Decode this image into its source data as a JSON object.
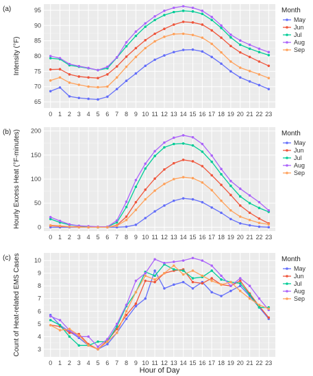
{
  "figure": {
    "xlabel": "Hour of Day"
  },
  "chart_data": [
    {
      "type": "line",
      "panel_label": "(a)",
      "title": "",
      "xlabel": "",
      "ylabel": "Intensity (°F)",
      "ylim": [
        63,
        97
      ],
      "yticks": [
        65,
        70,
        75,
        80,
        85,
        90,
        95
      ],
      "x": [
        0,
        1,
        2,
        3,
        4,
        5,
        6,
        7,
        8,
        9,
        10,
        11,
        12,
        13,
        14,
        15,
        16,
        17,
        18,
        19,
        20,
        21,
        22,
        23
      ],
      "legend_title": "Month",
      "legend_position": "right",
      "grid": true,
      "series": [
        {
          "name": "May",
          "color": "#636efa",
          "values": [
            68.5,
            69.7,
            66.8,
            66.3,
            66.0,
            65.8,
            66.7,
            69.2,
            71.9,
            74.3,
            76.8,
            78.8,
            80.2,
            81.3,
            82.0,
            82.1,
            81.5,
            79.7,
            77.5,
            75.0,
            73.0,
            71.7,
            70.5,
            69.2
          ]
        },
        {
          "name": "Jun",
          "color": "#ef553b",
          "values": [
            75.6,
            75.7,
            74.0,
            73.3,
            73.0,
            72.8,
            74.0,
            76.6,
            79.8,
            82.6,
            85.2,
            87.3,
            88.9,
            90.3,
            91.2,
            91.0,
            90.3,
            88.4,
            86.0,
            83.3,
            81.2,
            79.7,
            78.2,
            76.8
          ]
        },
        {
          "name": "Jul",
          "color": "#00cc96",
          "values": [
            79.3,
            79.0,
            77.0,
            76.5,
            76.0,
            75.4,
            76.0,
            79.5,
            83.2,
            86.6,
            89.6,
            91.8,
            93.4,
            94.4,
            94.8,
            94.6,
            93.8,
            91.8,
            89.2,
            86.1,
            83.7,
            82.4,
            81.3,
            80.3
          ]
        },
        {
          "name": "Aug",
          "color": "#ab63fa",
          "values": [
            80.0,
            79.3,
            77.4,
            76.7,
            76.1,
            75.4,
            76.5,
            79.6,
            84.5,
            88.0,
            90.7,
            93.0,
            94.8,
            95.8,
            96.3,
            95.8,
            94.8,
            92.8,
            90.0,
            87.0,
            85.1,
            83.7,
            82.4,
            81.3
          ]
        },
        {
          "name": "Sep",
          "color": "#ffa15a",
          "values": [
            72.0,
            73.0,
            71.3,
            70.6,
            70.0,
            69.8,
            70.0,
            73.0,
            76.5,
            79.7,
            82.6,
            84.8,
            86.3,
            87.2,
            87.3,
            86.9,
            86.0,
            84.0,
            81.2,
            78.2,
            76.2,
            75.1,
            74.0,
            72.8
          ]
        }
      ]
    },
    {
      "type": "line",
      "panel_label": "(b)",
      "title": "",
      "xlabel": "",
      "ylabel": "Hourly Excess Heat (°F-minutes)",
      "ylim": [
        -8,
        208
      ],
      "yticks": [
        0,
        50,
        100,
        150,
        200
      ],
      "x": [
        0,
        1,
        2,
        3,
        4,
        5,
        6,
        7,
        8,
        9,
        10,
        11,
        12,
        13,
        14,
        15,
        16,
        17,
        18,
        19,
        20,
        21,
        22,
        23
      ],
      "legend_title": "Month",
      "legend_position": "right",
      "grid": true,
      "series": [
        {
          "name": "May",
          "color": "#636efa",
          "values": [
            0,
            0,
            0,
            0,
            0,
            0,
            0,
            0,
            1,
            5,
            19,
            33,
            45,
            55,
            60,
            58,
            52,
            41,
            30,
            17,
            8,
            4,
            1,
            0
          ]
        },
        {
          "name": "Jun",
          "color": "#ef553b",
          "values": [
            3,
            2,
            1,
            1,
            0,
            0,
            0,
            4,
            22,
            52,
            78,
            101,
            120,
            133,
            140,
            137,
            127,
            108,
            88,
            67,
            45,
            30,
            18,
            8
          ]
        },
        {
          "name": "Jul",
          "color": "#00cc96",
          "values": [
            17,
            10,
            5,
            3,
            1,
            0,
            1,
            10,
            42,
            84,
            122,
            148,
            166,
            173,
            174,
            170,
            157,
            136,
            110,
            86,
            64,
            50,
            40,
            32
          ]
        },
        {
          "name": "Aug",
          "color": "#ab63fa",
          "values": [
            21,
            13,
            6,
            3,
            2,
            1,
            1,
            14,
            53,
            98,
            132,
            158,
            176,
            186,
            191,
            187,
            173,
            149,
            121,
            96,
            80,
            66,
            52,
            35
          ]
        },
        {
          "name": "Sep",
          "color": "#ffa15a",
          "values": [
            4,
            3,
            1,
            0,
            0,
            0,
            0,
            3,
            15,
            36,
            58,
            76,
            90,
            100,
            104,
            102,
            93,
            77,
            55,
            35,
            22,
            15,
            9,
            6
          ]
        }
      ]
    },
    {
      "type": "line",
      "panel_label": "(c)",
      "title": "",
      "xlabel": "Hour of Day",
      "ylabel": "Count of Heat-related EMS Cases",
      "ylim": [
        2.4,
        10.6
      ],
      "yticks": [
        3,
        4,
        5,
        6,
        7,
        8,
        9,
        10
      ],
      "x": [
        0,
        1,
        2,
        3,
        4,
        5,
        6,
        7,
        8,
        9,
        10,
        11,
        12,
        13,
        14,
        15,
        16,
        17,
        18,
        19,
        20,
        21,
        22,
        23
      ],
      "legend_title": "Month",
      "legend_position": "right",
      "grid": true,
      "series": [
        {
          "name": "May",
          "color": "#636efa",
          "values": [
            5.7,
            4.9,
            4.4,
            3.9,
            3.3,
            3.0,
            3.4,
            4.3,
            5.4,
            6.4,
            7.0,
            9.2,
            7.8,
            8.1,
            8.3,
            7.8,
            8.3,
            7.5,
            7.2,
            7.6,
            8.0,
            7.2,
            6.3,
            5.4
          ]
        },
        {
          "name": "Jun",
          "color": "#ef553b",
          "values": [
            4.9,
            4.8,
            4.3,
            4.2,
            3.4,
            3.0,
            3.7,
            4.6,
            5.7,
            6.6,
            8.4,
            8.3,
            9.0,
            9.2,
            9.3,
            8.3,
            8.2,
            8.6,
            8.1,
            8.0,
            8.4,
            7.4,
            6.4,
            5.5
          ]
        },
        {
          "name": "Jul",
          "color": "#00cc96",
          "values": [
            5.3,
            4.9,
            4.0,
            3.3,
            3.3,
            3.6,
            3.6,
            4.8,
            6.4,
            7.5,
            9.1,
            8.8,
            9.7,
            9.3,
            9.2,
            8.6,
            8.7,
            9.2,
            8.5,
            8.3,
            8.2,
            7.3,
            6.3,
            6.3
          ]
        },
        {
          "name": "Aug",
          "color": "#ab63fa",
          "values": [
            5.6,
            5.3,
            4.5,
            4.0,
            4.0,
            3.2,
            3.8,
            5.0,
            6.5,
            8.4,
            9.0,
            10.1,
            9.8,
            9.9,
            10.0,
            10.2,
            10.0,
            9.6,
            8.8,
            8.0,
            8.6,
            8.0,
            7.0,
            6.1
          ]
        },
        {
          "name": "Sep",
          "color": "#ffa15a",
          "values": [
            4.9,
            4.5,
            4.6,
            4.1,
            3.3,
            3.0,
            3.6,
            4.3,
            6.0,
            7.5,
            8.8,
            8.5,
            9.0,
            9.6,
            8.9,
            9.2,
            8.8,
            8.4,
            8.1,
            8.3,
            7.6,
            7.0,
            6.5,
            6.2
          ]
        }
      ]
    }
  ]
}
